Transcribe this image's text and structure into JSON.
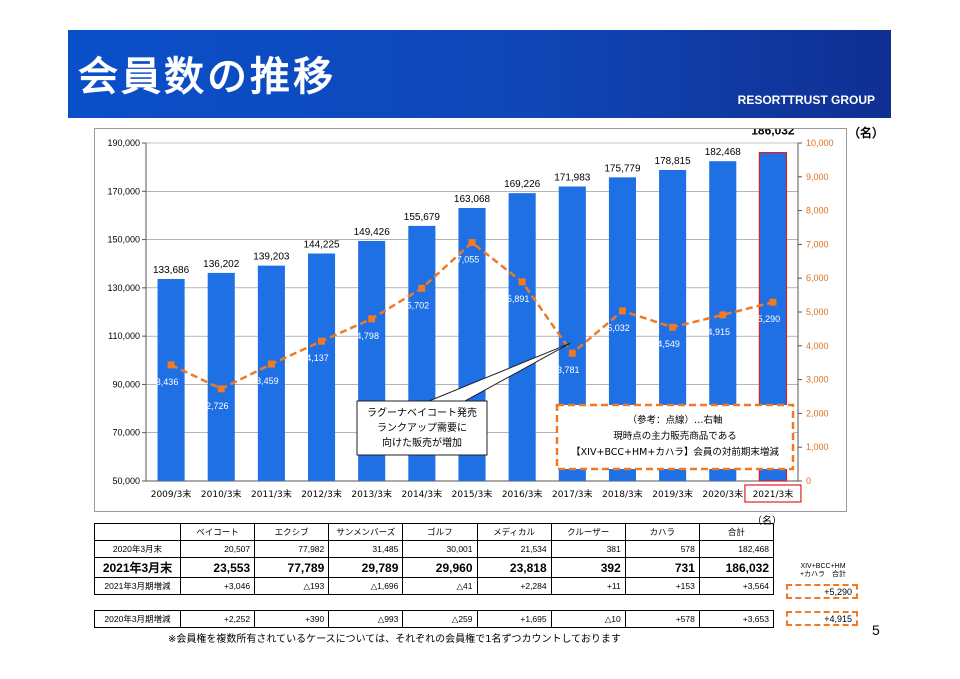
{
  "header": {
    "title": "会員数の推移",
    "group": "RESORTTRUST GROUP"
  },
  "unit_label": "（名）",
  "chart_data": {
    "type": "bar",
    "categories": [
      "2009/3末",
      "2010/3末",
      "2011/3末",
      "2012/3末",
      "2013/3末",
      "2014/3末",
      "2015/3末",
      "2016/3末",
      "2017/3末",
      "2018/3末",
      "2019/3末",
      "2020/3末",
      "2021/3末"
    ],
    "series": [
      {
        "type": "bar",
        "axis": "left",
        "color": "#1f6fe5",
        "values": [
          133686,
          136202,
          139203,
          144225,
          149426,
          155679,
          163068,
          169226,
          171983,
          175779,
          178815,
          182468,
          186032
        ],
        "labels": [
          "133,686",
          "136,202",
          "139,203",
          "144,225",
          "149,426",
          "155,679",
          "163,068",
          "169,226",
          "171,983",
          "175,779",
          "178,815",
          "182,468",
          "186,032"
        ]
      },
      {
        "type": "line",
        "axis": "right",
        "style": "dashed",
        "color": "#f07a24",
        "values": [
          3436,
          2726,
          3459,
          4137,
          4798,
          5702,
          7055,
          5891,
          3781,
          5032,
          4549,
          4915,
          5290
        ],
        "labels": [
          "3,436",
          "2,726",
          "3,459",
          "4,137",
          "4,798",
          "5,702",
          "7,055",
          "5,891",
          "3,781",
          "5,032",
          "4,549",
          "4,915",
          "5,290"
        ]
      }
    ],
    "ylim_left": [
      50000,
      190000
    ],
    "yticks_left": [
      "50,000",
      "70,000",
      "90,000",
      "110,000",
      "130,000",
      "150,000",
      "170,000",
      "190,000"
    ],
    "ylim_right": [
      0,
      10000
    ],
    "yticks_right": [
      "0",
      "1,000",
      "2,000",
      "3,000",
      "4,000",
      "5,000",
      "6,000",
      "7,000",
      "8,000",
      "9,000",
      "10,000"
    ],
    "grid": true,
    "highlight_category": "2021/3末",
    "callout": [
      "ラグーナベイコート発売",
      "ランクアップ需要に",
      "向けた販売が増加"
    ],
    "note_box": [
      "（参考：点線）…右軸",
      "現時点の主力販売商品である",
      "【XIV+BCC+HM+カハラ】会員の対前期末増減"
    ]
  },
  "table": {
    "unit": "（名）",
    "headers": [
      "",
      "ベイコート",
      "エクシブ",
      "サンメンバーズ",
      "ゴルフ",
      "メディカル",
      "クルーザー",
      "カハラ",
      "合計"
    ],
    "rows": [
      [
        "2020年3月末",
        "20,507",
        "77,982",
        "31,485",
        "30,001",
        "21,534",
        "381",
        "578",
        "182,468"
      ],
      [
        "2021年3月末",
        "23,553",
        "77,789",
        "29,789",
        "29,960",
        "23,818",
        "392",
        "731",
        "186,032"
      ],
      [
        "2021年3月期増減",
        "+3,046",
        "△193",
        "△1,696",
        "△41",
        "+2,284",
        "+11",
        "+153",
        "+3,564"
      ]
    ],
    "row2020": [
      "2020年3月期増減",
      "+2,252",
      "+390",
      "△993",
      "△259",
      "+1,695",
      "△10",
      "+578",
      "+3,653"
    ]
  },
  "side": {
    "label_line1": "XIV+BCC+HM",
    "label_line2": "+カハラ　合計",
    "value_2021": "+5,290",
    "value_2020": "+4,915"
  },
  "footnote": "※会員権を複数所有されているケースについては、それぞれの会員権で1名ずつカウントしております",
  "page_number": "5"
}
